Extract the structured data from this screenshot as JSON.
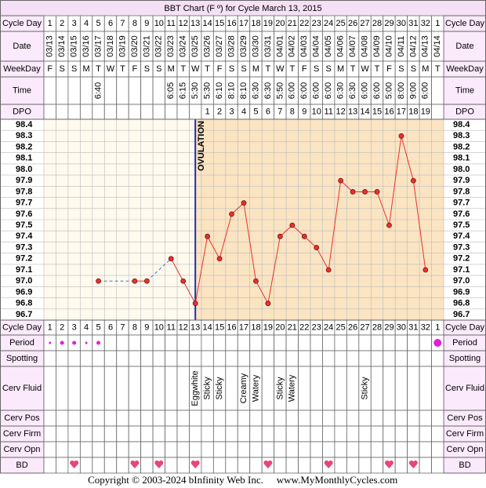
{
  "chart_data": {
    "type": "bbt",
    "title": "BBT Chart (F º) for Cycle March 13, 2015",
    "rows_top": [
      "Cycle Day",
      "Date",
      "WeekDay",
      "Time",
      "DPO"
    ],
    "rows_bottom": [
      "Cycle Day",
      "Period",
      "Spotting",
      "Cerv Fluid",
      "Cerv Pos",
      "Cerv Firm",
      "Cerv Opn",
      "BD"
    ],
    "categories": [
      1,
      2,
      3,
      4,
      5,
      6,
      7,
      8,
      9,
      10,
      11,
      12,
      13,
      14,
      15,
      16,
      17,
      18,
      19,
      20,
      21,
      22,
      23,
      24,
      25,
      26,
      27,
      28,
      29,
      30,
      31,
      32,
      1
    ],
    "dates": [
      "03/13",
      "03/14",
      "03/15",
      "03/16",
      "03/17",
      "03/18",
      "03/19",
      "03/20",
      "03/21",
      "03/22",
      "03/23",
      "03/24",
      "03/25",
      "03/26",
      "03/27",
      "03/28",
      "03/29",
      "03/30",
      "03/31",
      "04/01",
      "04/02",
      "04/03",
      "04/04",
      "04/05",
      "04/06",
      "04/07",
      "04/08",
      "04/09",
      "04/10",
      "04/11",
      "04/12",
      "04/13",
      "04/14"
    ],
    "weekdays": [
      "F",
      "S",
      "S",
      "M",
      "T",
      "W",
      "T",
      "F",
      "S",
      "S",
      "M",
      "T",
      "W",
      "T",
      "F",
      "S",
      "S",
      "M",
      "T",
      "W",
      "T",
      "F",
      "S",
      "S",
      "M",
      "T",
      "W",
      "T",
      "F",
      "S",
      "S",
      "M",
      "T"
    ],
    "times": [
      null,
      null,
      null,
      null,
      "6:40",
      null,
      null,
      null,
      null,
      null,
      "6:05",
      "6:15",
      "5:30",
      "5:30",
      "6:10",
      "8:10",
      "8:10",
      "6:30",
      "6:30",
      "5:50",
      "6:00",
      "6:00",
      "6:00",
      "6:00",
      "6:30",
      "6:30",
      "6:00",
      "6:00",
      "5:00",
      "8:00",
      "9:00",
      "6:00",
      null
    ],
    "dpo": [
      null,
      null,
      null,
      null,
      null,
      null,
      null,
      null,
      null,
      null,
      null,
      null,
      null,
      1,
      2,
      3,
      4,
      5,
      6,
      7,
      8,
      9,
      10,
      11,
      12,
      13,
      14,
      15,
      16,
      17,
      18,
      19,
      null
    ],
    "series": [
      {
        "name": "BBT",
        "color": "#e8322e",
        "values": [
          null,
          null,
          null,
          null,
          97.0,
          null,
          null,
          97.0,
          97.0,
          null,
          97.2,
          97.0,
          96.8,
          97.4,
          97.2,
          97.6,
          97.7,
          97.0,
          96.8,
          97.4,
          97.5,
          97.4,
          97.3,
          97.1,
          97.9,
          97.8,
          97.8,
          97.8,
          97.5,
          98.3,
          97.9,
          97.1,
          null
        ]
      }
    ],
    "gap_color": "#4a6fd8",
    "ylim": [
      96.65,
      98.45
    ],
    "yticks": [
      98.4,
      98.3,
      98.2,
      98.1,
      {
        "value": 98,
        "label": "98.0"
      },
      97.9,
      97.8,
      97.7,
      97.6,
      97.5,
      97.4,
      97.3,
      97.2,
      97.1,
      {
        "value": 97,
        "label": "97.0"
      },
      96.9,
      96.8,
      96.7
    ],
    "ovulation_day": 13,
    "ovulation_label": "OVULATION",
    "period": [
      1,
      2,
      2,
      1,
      2,
      null,
      null,
      null,
      null,
      null,
      null,
      null,
      null,
      null,
      null,
      null,
      null,
      null,
      null,
      null,
      null,
      null,
      null,
      null,
      null,
      null,
      null,
      null,
      null,
      null,
      null,
      null,
      3
    ],
    "cerv_fluid": [
      null,
      null,
      null,
      null,
      null,
      null,
      null,
      null,
      null,
      null,
      null,
      null,
      "Eggwhite",
      "Sticky",
      "Sticky",
      null,
      "Creamy",
      "Watery",
      null,
      "Sticky",
      "Watery",
      null,
      null,
      null,
      null,
      null,
      "Sticky",
      null,
      null,
      null,
      null,
      null,
      null
    ],
    "bd": [
      false,
      false,
      true,
      false,
      false,
      false,
      false,
      true,
      false,
      true,
      false,
      false,
      true,
      false,
      false,
      false,
      false,
      false,
      true,
      false,
      false,
      false,
      false,
      true,
      false,
      false,
      false,
      false,
      true,
      false,
      true,
      false,
      false
    ],
    "footer": [
      "Copyright © 2003-2024 bInfinity Web Inc.",
      "www.MyMonthlyCycles.com"
    ]
  }
}
